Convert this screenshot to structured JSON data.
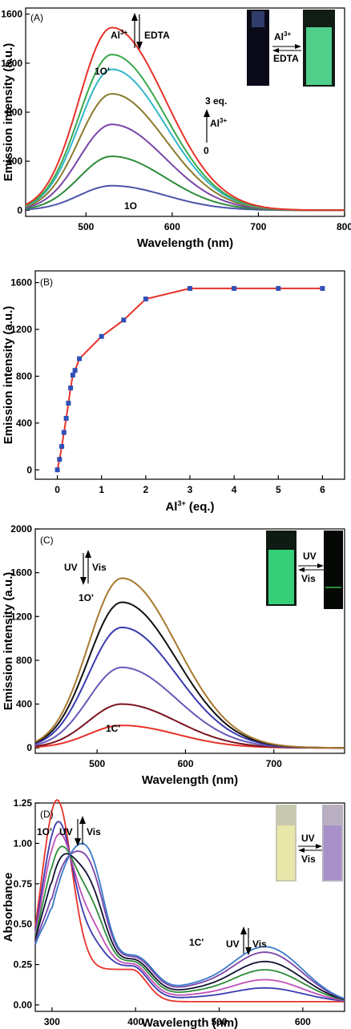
{
  "chart_data": [
    {
      "panel": "(A)",
      "type": "line",
      "xlabel": "Wavelength (nm)",
      "ylabel": "Emission intensity (a.u.)",
      "xlim": [
        430,
        800
      ],
      "ylim": [
        -50,
        1650
      ],
      "xticks": [
        500,
        600,
        700,
        800
      ],
      "yticks": [
        0,
        400,
        800,
        1200,
        1600
      ],
      "peak_x": 530,
      "series": [
        {
          "peak": 200,
          "color": "#4a55a8"
        },
        {
          "peak": 440,
          "color": "#2e8b3a"
        },
        {
          "peak": 700,
          "color": "#7a44a8"
        },
        {
          "peak": 950,
          "color": "#8a7a2e"
        },
        {
          "peak": 1150,
          "color": "#33b6c9"
        },
        {
          "peak": 1270,
          "color": "#3aa84a"
        },
        {
          "peak": 1490,
          "color": "#e8322a"
        }
      ],
      "annotations": {
        "a1": "Al",
        "a1_sup": "3+",
        "a2": "EDTA",
        "low_curve": "1O",
        "high_curve": "1O'",
        "range_top": "3 eq.",
        "range_ion": "Al",
        "range_ion_sup": "3+",
        "range_bottom": "0",
        "inset_top": "Al",
        "inset_top_sup": "3+",
        "inset_bottom": "EDTA"
      }
    },
    {
      "panel": "(B)",
      "type": "line",
      "xlabel": "Al",
      "xlabel_sup": "3+",
      "xlabel_end": " (eq.)",
      "ylabel": "Emission intensity (a.u.)",
      "xlim": [
        -0.5,
        6.5
      ],
      "ylim": [
        -80,
        1700
      ],
      "xticks": [
        0,
        1,
        2,
        3,
        4,
        5,
        6
      ],
      "yticks": [
        0,
        400,
        800,
        1200,
        1600
      ],
      "x": [
        0,
        0.05,
        0.1,
        0.15,
        0.2,
        0.25,
        0.3,
        0.35,
        0.4,
        0.5,
        1.0,
        1.5,
        2.0,
        3.0,
        4.0,
        5.0,
        6.0
      ],
      "y": [
        0,
        90,
        200,
        320,
        440,
        570,
        700,
        810,
        850,
        950,
        1140,
        1280,
        1460,
        1550,
        1550,
        1550,
        1550
      ],
      "line_color": "#e8322a",
      "marker_color": "#3050b8"
    },
    {
      "panel": "(C)",
      "type": "line",
      "xlabel": "Wavelength (nm)",
      "ylabel": "Emission intensity (a.u.)",
      "xlim": [
        430,
        780
      ],
      "ylim": [
        -50,
        2000
      ],
      "xticks": [
        500,
        600,
        700
      ],
      "yticks": [
        0,
        400,
        800,
        1200,
        1600,
        2000
      ],
      "peak_x": 528,
      "series": [
        {
          "peak": 205,
          "color": "#e8322a"
        },
        {
          "peak": 400,
          "color": "#7a1420"
        },
        {
          "peak": 735,
          "color": "#6a58b8"
        },
        {
          "peak": 1100,
          "color": "#3a3ab0"
        },
        {
          "peak": 1330,
          "color": "#111111"
        },
        {
          "peak": 1550,
          "color": "#a8782e"
        }
      ],
      "annotations": {
        "uv": "UV",
        "vis": "Vis",
        "high_curve": "1O'",
        "low_curve": "1C'",
        "inset_top": "UV",
        "inset_bottom": "Vis"
      }
    },
    {
      "panel": "(D)",
      "type": "line",
      "xlabel": "Wavelength (nm)",
      "ylabel": "Absorbance",
      "xlim": [
        280,
        650
      ],
      "ylim": [
        -0.04,
        1.25
      ],
      "xticks": [
        300,
        400,
        500,
        600
      ],
      "yticks": [
        0.0,
        0.25,
        0.5,
        0.75,
        1.0,
        1.25
      ],
      "series": [
        {
          "k": 0.0,
          "color": "#e8322a"
        },
        {
          "k": 0.25,
          "color": "#3a3ab0"
        },
        {
          "k": 0.4,
          "color": "#c050b8"
        },
        {
          "k": 0.58,
          "color": "#2e8b3a"
        },
        {
          "k": 0.73,
          "color": "#111133"
        },
        {
          "k": 0.9,
          "color": "#7a44a8"
        },
        {
          "k": 1.0,
          "color": "#3a7ac8"
        }
      ],
      "annotations": {
        "open_form": "1O'",
        "uv": "UV",
        "vis": "Vis",
        "closed_form": "1C'",
        "uv2": "UV",
        "vis2": "Vis",
        "inset_top": "UV",
        "inset_bottom": "Vis"
      }
    }
  ]
}
